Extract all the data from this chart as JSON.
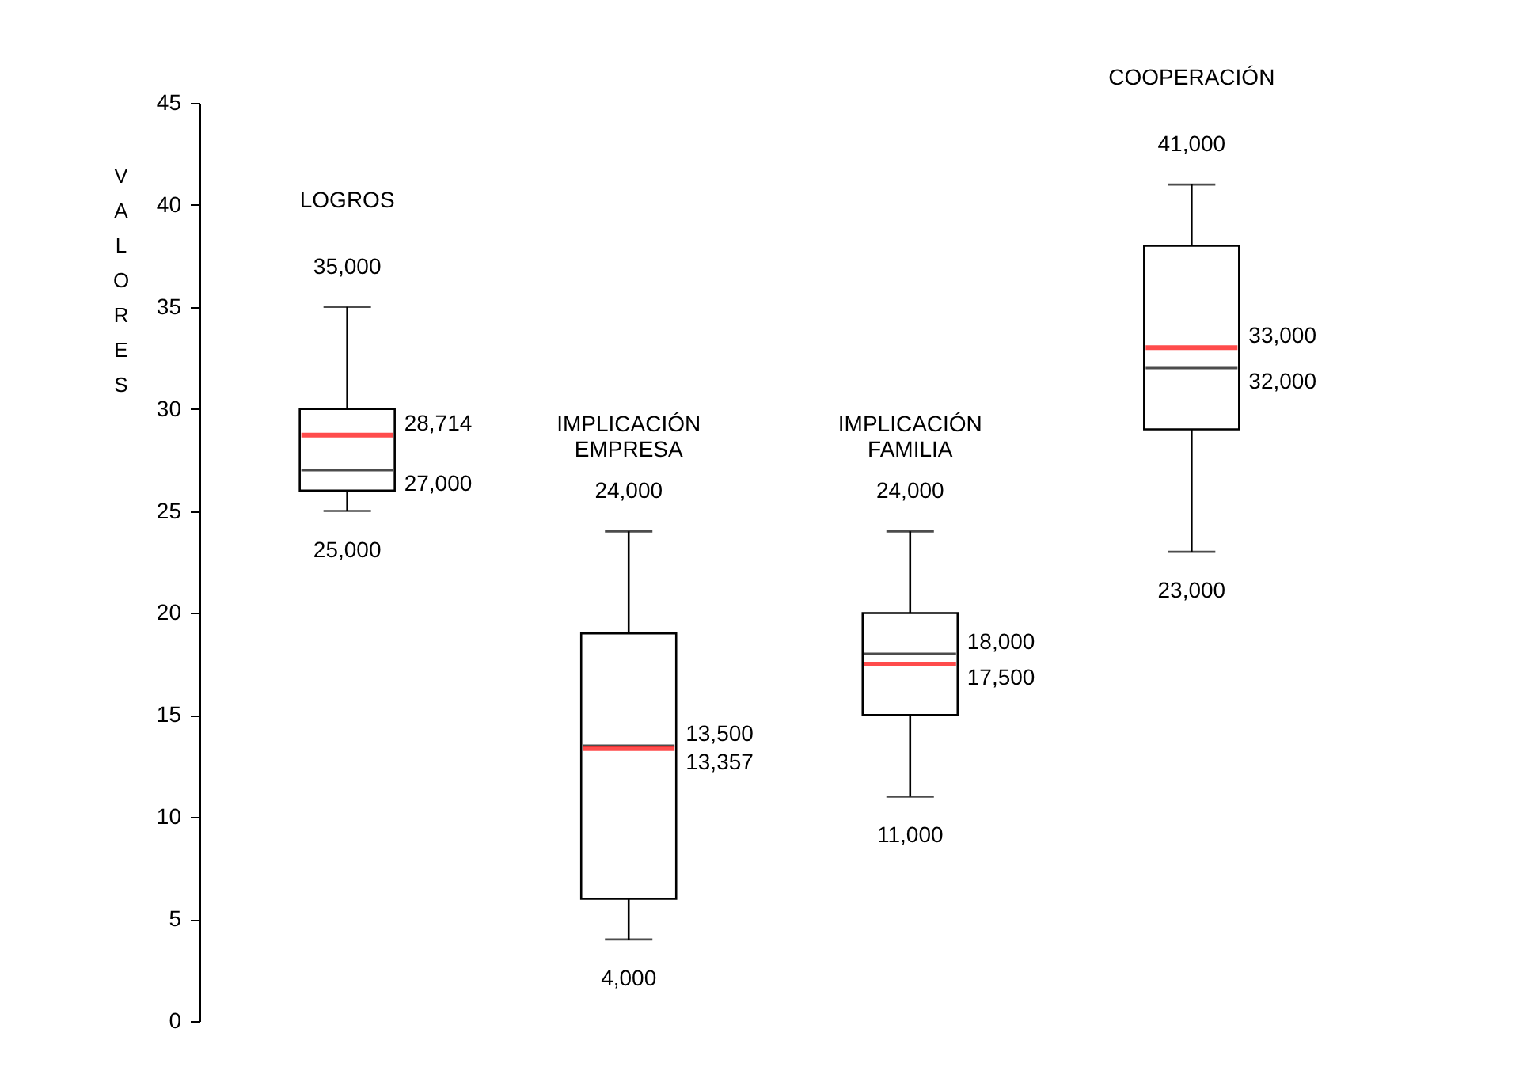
{
  "chart_data": {
    "type": "box",
    "categories": [
      "LOGROS",
      "IMPLICACIÓN EMPRESA",
      "IMPLICACIÓN FAMILIA",
      "COOPERACIÓN"
    ],
    "ylabel": "VALORES",
    "ylim": [
      0,
      45
    ],
    "yticks": [
      0,
      5,
      10,
      15,
      20,
      25,
      30,
      35,
      40,
      45
    ],
    "grid": false,
    "boxes": [
      {
        "low": 25,
        "q1": 26,
        "median": 27,
        "q3": 30,
        "high": 35,
        "mean": 28.714
      },
      {
        "low": 4,
        "q1": 6,
        "median": 13.5,
        "q3": 19,
        "high": 24,
        "mean": 13.357
      },
      {
        "low": 11,
        "q1": 15,
        "median": 18,
        "q3": 20,
        "high": 24,
        "mean": 17.5
      },
      {
        "low": 23,
        "q1": 29,
        "median": 32,
        "q3": 38,
        "high": 41,
        "mean": 33
      }
    ],
    "annotations": [
      {
        "text": "35,000",
        "x": "LOGROS",
        "y": 35
      },
      {
        "text": "28,714",
        "x": "LOGROS",
        "y": 28.714
      },
      {
        "text": "27,000",
        "x": "LOGROS",
        "y": 27
      },
      {
        "text": "25,000",
        "x": "LOGROS",
        "y": 25
      },
      {
        "text": "24,000",
        "x": "IMPLICACIÓN EMPRESA",
        "y": 24
      },
      {
        "text": "13,500",
        "x": "IMPLICACIÓN EMPRESA",
        "y": 13.5
      },
      {
        "text": "13,357",
        "x": "IMPLICACIÓN EMPRESA",
        "y": 13.357
      },
      {
        "text": "4,000",
        "x": "IMPLICACIÓN EMPRESA",
        "y": 4
      },
      {
        "text": "24,000",
        "x": "IMPLICACIÓN FAMILIA",
        "y": 24
      },
      {
        "text": "18,000",
        "x": "IMPLICACIÓN FAMILIA",
        "y": 18
      },
      {
        "text": "17,500",
        "x": "IMPLICACIÓN FAMILIA",
        "y": 17.5
      },
      {
        "text": "11,000",
        "x": "IMPLICACIÓN FAMILIA",
        "y": 11
      },
      {
        "text": "41,000",
        "x": "COOPERACIÓN",
        "y": 41
      },
      {
        "text": "33,000",
        "x": "COOPERACIÓN",
        "y": 33
      },
      {
        "text": "32,000",
        "x": "COOPERACIÓN",
        "y": 32
      },
      {
        "text": "23,000",
        "x": "COOPERACIÓN",
        "y": 23
      }
    ]
  }
}
